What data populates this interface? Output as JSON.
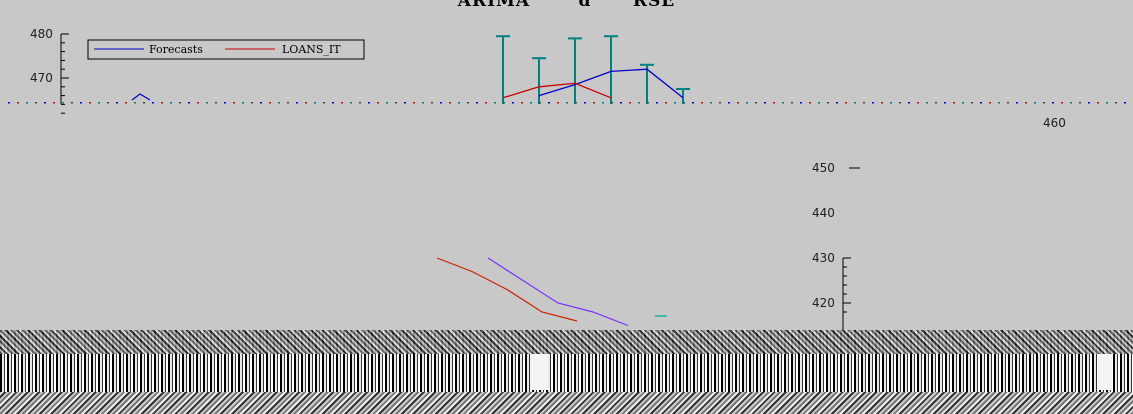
{
  "title_fragment": "ARIMA       d      RSE",
  "chart_data": [
    {
      "type": "line",
      "title": "",
      "xlabel": "",
      "ylabel": "",
      "ylim": [
        460,
        480
      ],
      "yticks": [
        "480",
        "470"
      ],
      "x": [
        1,
        2,
        3,
        4,
        5,
        6,
        7,
        8,
        9,
        10,
        11,
        12,
        13,
        14,
        15,
        16,
        17,
        18,
        19,
        20
      ],
      "series": [
        {
          "name": "Forecasts",
          "color": "#0000cc",
          "values": [
            null,
            null,
            null,
            null,
            null,
            null,
            null,
            null,
            null,
            null,
            null,
            null,
            null,
            466,
            468.5,
            471.5,
            472,
            465.5,
            null,
            null
          ]
        },
        {
          "name": "LOANS_IT",
          "color": "#cc0000",
          "values": [
            null,
            null,
            null,
            null,
            null,
            null,
            null,
            null,
            null,
            null,
            null,
            null,
            465.5,
            468,
            468.8,
            465.5,
            null,
            null,
            null,
            null
          ]
        }
      ],
      "intervals": {
        "color": "#008080",
        "x": [
          13,
          14,
          15,
          16,
          17,
          18
        ],
        "low": [
          460,
          460,
          460,
          460,
          460,
          460
        ],
        "high": [
          479.5,
          474.5,
          479,
          479.5,
          473,
          467.5
        ]
      },
      "legend": "top-left"
    },
    {
      "type": "line",
      "title": "",
      "xlabel": "",
      "ylabel": "",
      "ylim": [
        415,
        460
      ],
      "yticks": [
        "460",
        "450",
        "440",
        "430",
        "420"
      ],
      "series": [
        {
          "name": "",
          "color": "#cc2200",
          "values": [
            430,
            427,
            423,
            418,
            416
          ]
        },
        {
          "name": "",
          "color": "#7733ff",
          "values": [
            430,
            425,
            420,
            418,
            415
          ]
        }
      ],
      "legend": "none"
    }
  ],
  "colors": {
    "background": "#c8c8c8",
    "forecast": "#0000cc",
    "actual": "#cc0000",
    "interval": "#008080"
  }
}
